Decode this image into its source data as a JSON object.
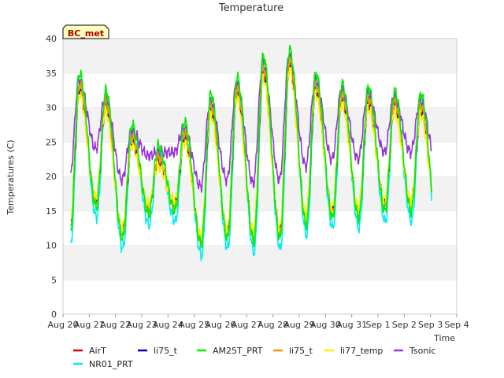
{
  "chart_data": {
    "type": "line",
    "title": "Temperature",
    "xlabel": "Time",
    "ylabel": "Temperatures (C)",
    "badge": "BC_met",
    "ylim": [
      0,
      40
    ],
    "yticks": [
      0,
      5,
      10,
      15,
      20,
      25,
      30,
      35,
      40
    ],
    "xlim": [
      0,
      15
    ],
    "xtick_labels": [
      "Aug 20",
      "Aug 21",
      "Aug 22",
      "Aug 23",
      "Aug 24",
      "Aug 25",
      "Aug 26",
      "Aug 27",
      "Aug 28",
      "Aug 29",
      "Aug 30",
      "Aug 31",
      "Sep 1",
      "Sep 2",
      "Sep 3",
      "Sep 4"
    ],
    "grid": "horizontal bands",
    "legend_position": "bottom",
    "day_values": {
      "base_day_offset": 0.3,
      "end_day": 14.05,
      "daily_min": [
        12.0,
        16.5,
        12.0,
        15.5,
        16.0,
        11.0,
        12.0,
        11.5,
        12.0,
        14.0,
        15.0,
        15.0,
        16.0,
        16.0,
        14.0
      ],
      "daily_max": [
        32.5,
        30.0,
        25.0,
        22.0,
        25.5,
        29.5,
        32.0,
        35.0,
        36.0,
        32.5,
        31.0,
        30.5,
        30.0,
        29.5
      ]
    },
    "series": [
      {
        "name": "AirT",
        "color": "#dd0000",
        "min_offset": 0.0,
        "max_offset": 0.0,
        "phase": 0.0
      },
      {
        "name": "li75_t",
        "color": "#0000bb",
        "min_offset": 0.3,
        "max_offset": -0.3,
        "phase": 0.01
      },
      {
        "name": "AM25T_PRT",
        "color": "#00ee00",
        "min_offset": -1.0,
        "max_offset": 2.5,
        "phase": 0.0
      },
      {
        "name": "li75_t",
        "color": "#ee9900",
        "min_offset": -0.3,
        "max_offset": 0.8,
        "phase": 0.005
      },
      {
        "name": "li77_temp",
        "color": "#ffee00",
        "min_offset": 0.5,
        "max_offset": -0.5,
        "phase": 0.015
      },
      {
        "name": "Tsonic",
        "color": "#9933dd",
        "min_offset": 7.5,
        "max_offset": 1.5,
        "phase": 0.02
      },
      {
        "name": "NR01_PRT",
        "color": "#00eeee",
        "min_offset": -2.5,
        "max_offset": 1.0,
        "phase": -0.01
      }
    ]
  }
}
